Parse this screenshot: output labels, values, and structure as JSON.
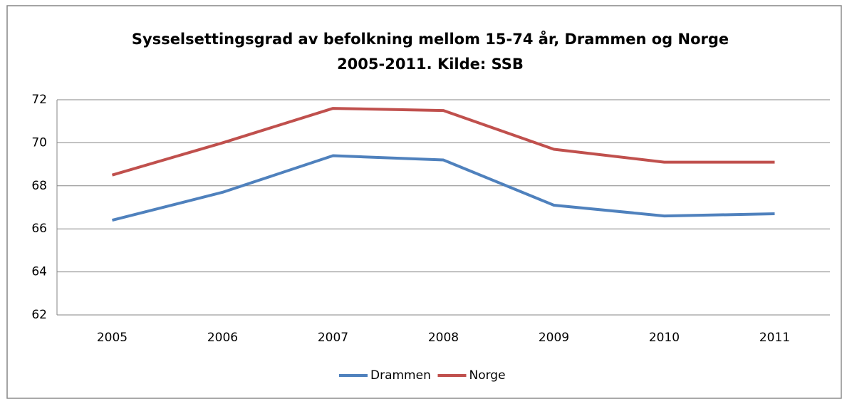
{
  "chart_data": {
    "type": "line",
    "title": [
      "Sysselsettingsgrad av befolkning mellom 15-74 år, Drammen og Norge",
      "2005-2011. Kilde: SSB"
    ],
    "categories": [
      "2005",
      "2006",
      "2007",
      "2008",
      "2009",
      "2010",
      "2011"
    ],
    "series": [
      {
        "name": "Drammen",
        "color": "#4f81bd",
        "values": [
          66.4,
          67.7,
          69.4,
          69.2,
          67.1,
          66.6,
          66.7
        ]
      },
      {
        "name": "Norge",
        "color": "#c0504d",
        "values": [
          68.5,
          70.0,
          71.6,
          71.5,
          69.7,
          69.1,
          69.1
        ]
      }
    ],
    "ylim": [
      62,
      72
    ],
    "yticks": [
      62,
      64,
      66,
      68,
      70,
      72
    ],
    "grid": true,
    "legend": "bottom"
  }
}
